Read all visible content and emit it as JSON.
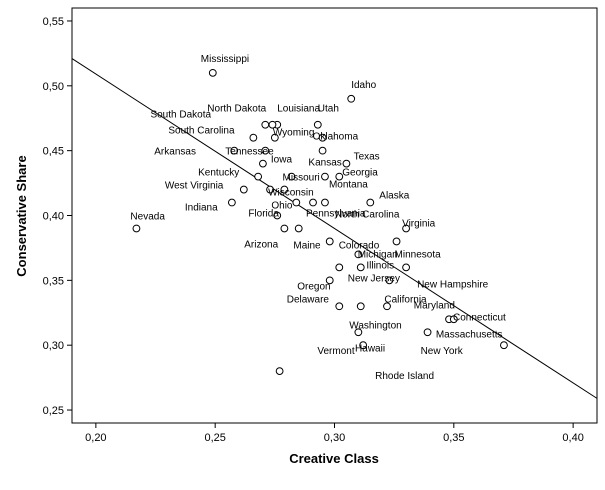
{
  "chart_data": {
    "type": "scatter",
    "xlabel": "Creative Class",
    "ylabel": "Conservative Share",
    "xlim": [
      0.19,
      0.41
    ],
    "ylim": [
      0.24,
      0.56
    ],
    "x_ticks": [
      {
        "value": 0.2,
        "label": "0,20"
      },
      {
        "value": 0.25,
        "label": "0,25"
      },
      {
        "value": 0.3,
        "label": "0,30"
      },
      {
        "value": 0.35,
        "label": "0,35"
      },
      {
        "value": 0.4,
        "label": "0,40"
      }
    ],
    "y_ticks": [
      {
        "value": 0.25,
        "label": "0,25"
      },
      {
        "value": 0.3,
        "label": "0,30"
      },
      {
        "value": 0.35,
        "label": "0,35"
      },
      {
        "value": 0.4,
        "label": "0,40"
      },
      {
        "value": 0.45,
        "label": "0,45"
      },
      {
        "value": 0.5,
        "label": "0,50"
      },
      {
        "value": 0.55,
        "label": "0,55"
      }
    ],
    "fit_line": {
      "x": [
        0.19,
        0.41
      ],
      "y": [
        0.521,
        0.259
      ]
    },
    "grid": false,
    "legend": "none",
    "colors": {
      "marker": "#000000",
      "line": "#000000",
      "background": "#ffffff"
    },
    "points": [
      {
        "x": 0.249,
        "y": 0.51,
        "label": "Mississippi"
      },
      {
        "x": 0.307,
        "y": 0.49,
        "label": "Idaho"
      },
      {
        "x": 0.271,
        "y": 0.47,
        "label": "North Dakota"
      },
      {
        "x": 0.276,
        "y": 0.47,
        "label": "Louisiana"
      },
      {
        "x": 0.293,
        "y": 0.47,
        "label": "Utah"
      },
      {
        "x": 0.274,
        "y": 0.47,
        "label": "South Dakota"
      },
      {
        "x": 0.266,
        "y": 0.46,
        "label": "South Carolina"
      },
      {
        "x": 0.275,
        "y": 0.46,
        "label": "Wyoming"
      },
      {
        "x": 0.295,
        "y": 0.46,
        "label": "Oklahoma"
      },
      {
        "x": 0.258,
        "y": 0.45,
        "label": "Arkansas"
      },
      {
        "x": 0.271,
        "y": 0.45,
        "label": "Tennessee"
      },
      {
        "x": 0.295,
        "y": 0.45,
        "label": "Texas"
      },
      {
        "x": 0.27,
        "y": 0.44,
        "label": "Iowa"
      },
      {
        "x": 0.305,
        "y": 0.44,
        "label": "Kansas"
      },
      {
        "x": 0.268,
        "y": 0.43,
        "label": "Kentucky"
      },
      {
        "x": 0.282,
        "y": 0.43,
        "label": "Missouri"
      },
      {
        "x": 0.296,
        "y": 0.43,
        "label": "Montana"
      },
      {
        "x": 0.302,
        "y": 0.43,
        "label": "Georgia"
      },
      {
        "x": 0.262,
        "y": 0.42,
        "label": "West Virginia"
      },
      {
        "x": 0.273,
        "y": 0.42,
        "label": "Wisconsin"
      },
      {
        "x": 0.279,
        "y": 0.42,
        "label": "Ohio"
      },
      {
        "x": 0.257,
        "y": 0.41,
        "label": "Indiana"
      },
      {
        "x": 0.284,
        "y": 0.41,
        "label": "Florida"
      },
      {
        "x": 0.291,
        "y": 0.41,
        "label": "Pennsylvania"
      },
      {
        "x": 0.296,
        "y": 0.41,
        "label": "North Carolina"
      },
      {
        "x": 0.315,
        "y": 0.41,
        "label": "Alaska"
      },
      {
        "x": 0.217,
        "y": 0.39,
        "label": "Nevada"
      },
      {
        "x": 0.276,
        "y": 0.4,
        "label": "Arizona"
      },
      {
        "x": 0.279,
        "y": 0.39,
        "label": "Maine"
      },
      {
        "x": 0.285,
        "y": 0.39,
        "label": "Colorado"
      },
      {
        "x": 0.298,
        "y": 0.38,
        "label": "Michigan"
      },
      {
        "x": 0.326,
        "y": 0.38,
        "label": "Minnesota"
      },
      {
        "x": 0.33,
        "y": 0.39,
        "label": "Virginia"
      },
      {
        "x": 0.31,
        "y": 0.37,
        "label": "Illinois"
      },
      {
        "x": 0.302,
        "y": 0.36,
        "label": "Oregon"
      },
      {
        "x": 0.311,
        "y": 0.36,
        "label": "New Jersey"
      },
      {
        "x": 0.33,
        "y": 0.36,
        "label": "New Hampshire"
      },
      {
        "x": 0.298,
        "y": 0.35,
        "label": "Delaware"
      },
      {
        "x": 0.323,
        "y": 0.35,
        "label": "California"
      },
      {
        "x": 0.302,
        "y": 0.33,
        "label": "Washington"
      },
      {
        "x": 0.311,
        "y": 0.33,
        "label": "Maryland"
      },
      {
        "x": 0.322,
        "y": 0.33,
        "label": "Connecticut"
      },
      {
        "x": 0.31,
        "y": 0.31,
        "label": "Vermont"
      },
      {
        "x": 0.339,
        "y": 0.31,
        "label": "New York"
      },
      {
        "x": 0.312,
        "y": 0.3,
        "label": "Rhode Island"
      },
      {
        "x": 0.348,
        "y": 0.32,
        "label": "Hawaii"
      },
      {
        "x": 0.35,
        "y": 0.32,
        "label": "Massachusetts"
      },
      {
        "x": 0.371,
        "y": 0.3
      },
      {
        "x": 0.277,
        "y": 0.28
      }
    ]
  }
}
